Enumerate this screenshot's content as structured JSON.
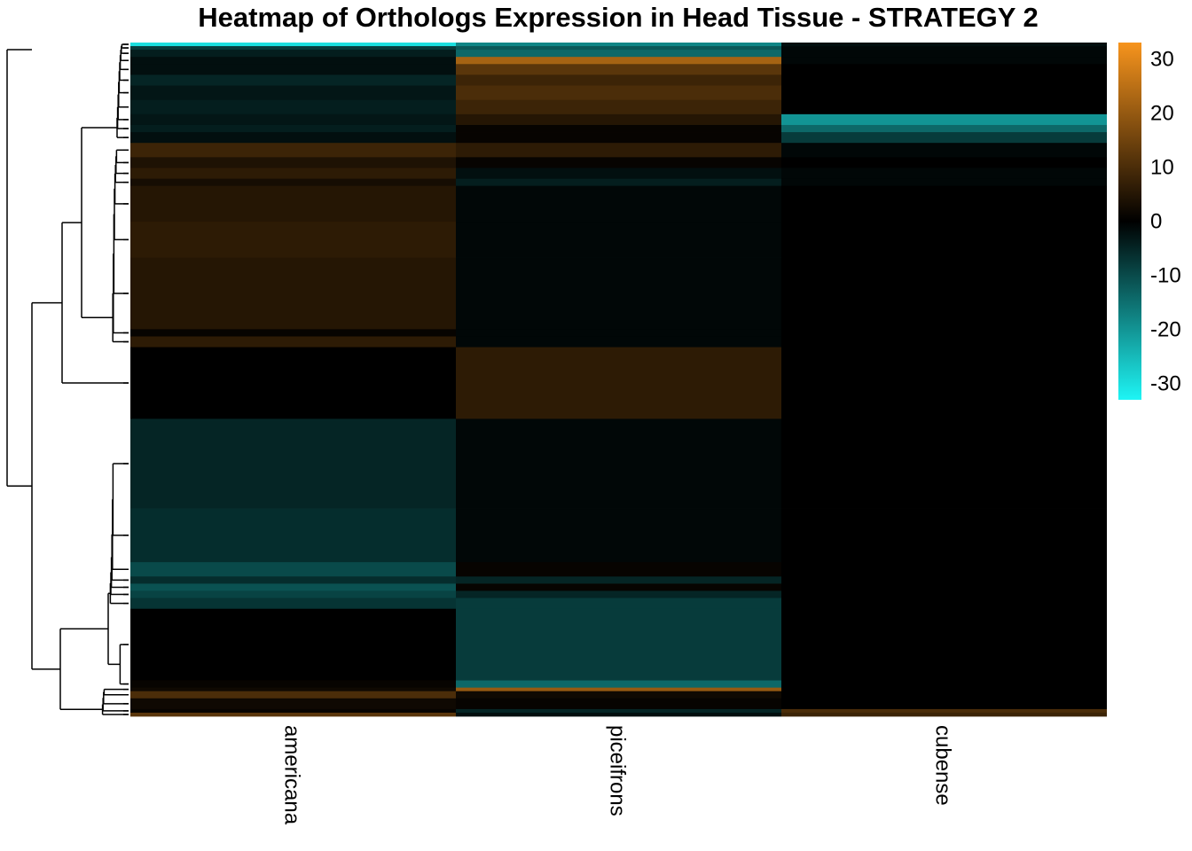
{
  "chart_data": {
    "type": "heatmap",
    "title": "Heatmap of Orthologs Expression in Head Tissue - STRATEGY 2",
    "columns": [
      "americana",
      "piceifrons",
      "cubense"
    ],
    "row_clustering": "dendrogram (left)",
    "colorbar": {
      "ticks": [
        30,
        20,
        10,
        0,
        -10,
        -20,
        -30
      ],
      "range": [
        -33,
        33
      ],
      "colors": {
        "low": "#1ef5f5",
        "mid": "#000000",
        "high": "#f7941d"
      }
    },
    "row_blocks": [
      {
        "rows": 1,
        "values": [
          -30,
          -18,
          -2
        ]
      },
      {
        "rows": 1,
        "values": [
          -8,
          -12,
          -1
        ]
      },
      {
        "rows": 2,
        "values": [
          -4,
          -14,
          -1
        ]
      },
      {
        "rows": 2,
        "values": [
          -2,
          22,
          -1
        ]
      },
      {
        "rows": 3,
        "values": [
          -2,
          12,
          0
        ]
      },
      {
        "rows": 3,
        "values": [
          -5,
          8,
          0
        ]
      },
      {
        "rows": 4,
        "values": [
          -3,
          10,
          0
        ]
      },
      {
        "rows": 4,
        "values": [
          -4,
          8,
          0
        ]
      },
      {
        "rows": 3,
        "values": [
          -3,
          5,
          -20
        ]
      },
      {
        "rows": 2,
        "values": [
          -4,
          1,
          -14
        ]
      },
      {
        "rows": 3,
        "values": [
          -2,
          1,
          -8
        ]
      },
      {
        "rows": 4,
        "values": [
          8,
          6,
          -1
        ]
      },
      {
        "rows": 3,
        "values": [
          4,
          1,
          0
        ]
      },
      {
        "rows": 3,
        "values": [
          6,
          -2,
          -1
        ]
      },
      {
        "rows": 2,
        "values": [
          3,
          -4,
          -1
        ]
      },
      {
        "rows": 10,
        "values": [
          5,
          -1,
          0
        ]
      },
      {
        "rows": 10,
        "values": [
          6,
          -1,
          0
        ]
      },
      {
        "rows": 20,
        "values": [
          5,
          -1,
          0
        ]
      },
      {
        "rows": 2,
        "values": [
          1,
          -1,
          0
        ]
      },
      {
        "rows": 3,
        "values": [
          6,
          -1,
          0
        ]
      },
      {
        "rows": 20,
        "values": [
          0,
          6,
          0
        ]
      },
      {
        "rows": 25,
        "values": [
          -5,
          -1,
          0
        ]
      },
      {
        "rows": 15,
        "values": [
          -6,
          -1,
          0
        ]
      },
      {
        "rows": 4,
        "values": [
          -10,
          1,
          0
        ]
      },
      {
        "rows": 2,
        "values": [
          -6,
          -5,
          0
        ]
      },
      {
        "rows": 2,
        "values": [
          -11,
          1,
          0
        ]
      },
      {
        "rows": 2,
        "values": [
          -9,
          -5,
          0
        ]
      },
      {
        "rows": 3,
        "values": [
          -7,
          -8,
          0
        ]
      },
      {
        "rows": 20,
        "values": [
          0,
          -8,
          0
        ]
      },
      {
        "rows": 2,
        "values": [
          1,
          -14,
          0
        ]
      },
      {
        "rows": 1,
        "values": [
          2,
          20,
          0
        ]
      },
      {
        "rows": 2,
        "values": [
          10,
          2,
          0
        ]
      },
      {
        "rows": 3,
        "values": [
          2,
          1,
          0
        ]
      },
      {
        "rows": 1,
        "values": [
          1,
          -5,
          10
        ]
      },
      {
        "rows": 1,
        "values": [
          12,
          -2,
          8
        ]
      }
    ]
  }
}
